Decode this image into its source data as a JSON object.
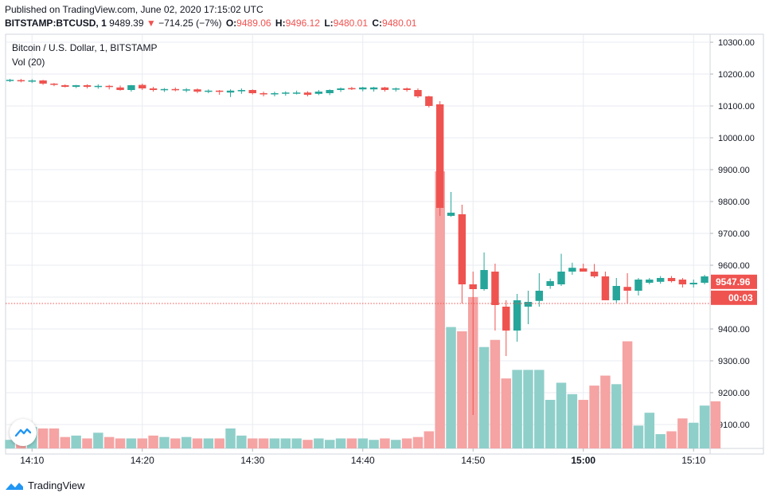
{
  "header": {
    "published_line": "Published on TradingView.com, June 02, 2020 17:15:02 UTC",
    "symbol_line": "BITSTAMP:BTCUSD, 1",
    "last_value": "9489.39",
    "change_arrow": "▼",
    "change": "−714.25 (−7%)",
    "o_label": "O:",
    "o_value": "9489.06",
    "h_label": "H:",
    "h_value": "9496.12",
    "l_label": "L:",
    "l_value": "9480.01",
    "c_label": "C:",
    "c_value": "9480.01"
  },
  "legend": {
    "series_title": "Bitcoin / U.S. Dollar, 1, BITSTAMP",
    "volume_title": "Vol (20)"
  },
  "footer": {
    "brand": "TradingView"
  },
  "icons": {
    "logo": "tradingview-logo-icon",
    "down": "down-triangle-icon"
  },
  "colors": {
    "up": "#26a69a",
    "down": "#ef5350",
    "vol_up": "#8fcfca",
    "vol_down": "#f5a3a3",
    "grid": "#e8ebf0"
  },
  "chart_data": {
    "type": "candlestick",
    "title": "Bitcoin / U.S. Dollar, 1, BITSTAMP",
    "ylim": [
      9025,
      10325
    ],
    "y_ticks": [
      9100,
      9200,
      9300,
      9400,
      9500,
      9600,
      9700,
      9800,
      9900,
      10000,
      10100,
      10200,
      10300
    ],
    "x_ticks": [
      {
        "label": "14:10",
        "t": 2
      },
      {
        "label": "14:20",
        "t": 12
      },
      {
        "label": "14:30",
        "t": 22
      },
      {
        "label": "14:40",
        "t": 32
      },
      {
        "label": "14:50",
        "t": 42
      },
      {
        "label": "15:00",
        "t": 52
      },
      {
        "label": "15:10",
        "t": 62
      }
    ],
    "x_range": [
      -0.4,
      63.5
    ],
    "candles": [
      [
        10180,
        10185,
        10175,
        10182
      ],
      [
        10181,
        10185,
        10174,
        10178
      ],
      [
        10178,
        10184,
        10172,
        10180
      ],
      [
        10180,
        10182,
        10166,
        10170
      ],
      [
        10170,
        10172,
        10162,
        10167
      ],
      [
        10165,
        10168,
        10158,
        10160
      ],
      [
        10160,
        10166,
        10156,
        10165
      ],
      [
        10165,
        10168,
        10155,
        10160
      ],
      [
        10160,
        10168,
        10154,
        10163
      ],
      [
        10163,
        10166,
        10152,
        10160
      ],
      [
        10158,
        10164,
        10148,
        10150
      ],
      [
        10150,
        10166,
        10145,
        10165
      ],
      [
        10166,
        10170,
        10150,
        10155
      ],
      [
        10155,
        10160,
        10145,
        10150
      ],
      [
        10150,
        10156,
        10144,
        10153
      ],
      [
        10153,
        10158,
        10146,
        10150
      ],
      [
        10150,
        10156,
        10143,
        10152
      ],
      [
        10152,
        10155,
        10140,
        10145
      ],
      [
        10148,
        10152,
        10140,
        10148
      ],
      [
        10148,
        10150,
        10135,
        10145
      ],
      [
        10142,
        10152,
        10128,
        10148
      ],
      [
        10146,
        10155,
        10138,
        10150
      ],
      [
        10150,
        10152,
        10136,
        10140
      ],
      [
        10140,
        10145,
        10130,
        10138
      ],
      [
        10138,
        10145,
        10130,
        10140
      ],
      [
        10140,
        10146,
        10132,
        10142
      ],
      [
        10140,
        10148,
        10136,
        10142
      ],
      [
        10142,
        10146,
        10130,
        10135
      ],
      [
        10138,
        10150,
        10134,
        10145
      ],
      [
        10140,
        10152,
        10134,
        10150
      ],
      [
        10150,
        10158,
        10144,
        10155
      ],
      [
        10156,
        10160,
        10150,
        10154
      ],
      [
        10152,
        10160,
        10146,
        10158
      ],
      [
        10152,
        10160,
        10145,
        10158
      ],
      [
        10158,
        10160,
        10145,
        10150
      ],
      [
        10155,
        10158,
        10145,
        10155
      ],
      [
        10155,
        10158,
        10145,
        10150
      ],
      [
        10150,
        10155,
        10125,
        10130
      ],
      [
        10130,
        10132,
        10095,
        10100
      ],
      [
        10105,
        10115,
        9755,
        9780
      ],
      [
        9755,
        9830,
        9752,
        9765
      ],
      [
        9760,
        9790,
        9480,
        9540
      ],
      [
        9540,
        9580,
        9130,
        9525
      ],
      [
        9525,
        9640,
        9520,
        9585
      ],
      [
        9580,
        9605,
        9395,
        9475
      ],
      [
        9470,
        9490,
        9315,
        9395
      ],
      [
        9395,
        9510,
        9360,
        9490
      ],
      [
        9470,
        9520,
        9415,
        9485
      ],
      [
        9488,
        9575,
        9470,
        9520
      ],
      [
        9535,
        9558,
        9526,
        9550
      ],
      [
        9540,
        9636,
        9535,
        9580
      ],
      [
        9580,
        9608,
        9570,
        9592
      ],
      [
        9590,
        9605,
        9580,
        9580
      ],
      [
        9580,
        9604,
        9560,
        9565
      ],
      [
        9565,
        9580,
        9500,
        9490
      ],
      [
        9490,
        9560,
        9482,
        9535
      ],
      [
        9532,
        9575,
        9480,
        9520
      ],
      [
        9520,
        9560,
        9505,
        9555
      ],
      [
        9545,
        9560,
        9540,
        9555
      ],
      [
        9548,
        9566,
        9542,
        9560
      ],
      [
        9560,
        9566,
        9546,
        9550
      ],
      [
        9555,
        9560,
        9530,
        9540
      ],
      [
        9540,
        9555,
        9530,
        9545
      ],
      [
        9545,
        9570,
        9540,
        9565
      ],
      [
        9560,
        9565,
        9540,
        9548
      ]
    ],
    "vol_scale": [
      0,
      290
    ],
    "volume": [
      6,
      7,
      15,
      14,
      14,
      8,
      9,
      7,
      11,
      8,
      7,
      7,
      7,
      9,
      8,
      7,
      8,
      7,
      7,
      7,
      14,
      9,
      7,
      7,
      7,
      7,
      7,
      6,
      7,
      6,
      7,
      7,
      7,
      6,
      7,
      6,
      7,
      8,
      12,
      194,
      85,
      82,
      106,
      71,
      76,
      49,
      55,
      55,
      55,
      34,
      46,
      38,
      34,
      44,
      51,
      45,
      75,
      16,
      25,
      10,
      12,
      21,
      18,
      30,
      33
    ],
    "last_price": 9547.96,
    "last_price_label": "9547.96",
    "timer_label": "00:03",
    "timer_price": 9480.01
  }
}
